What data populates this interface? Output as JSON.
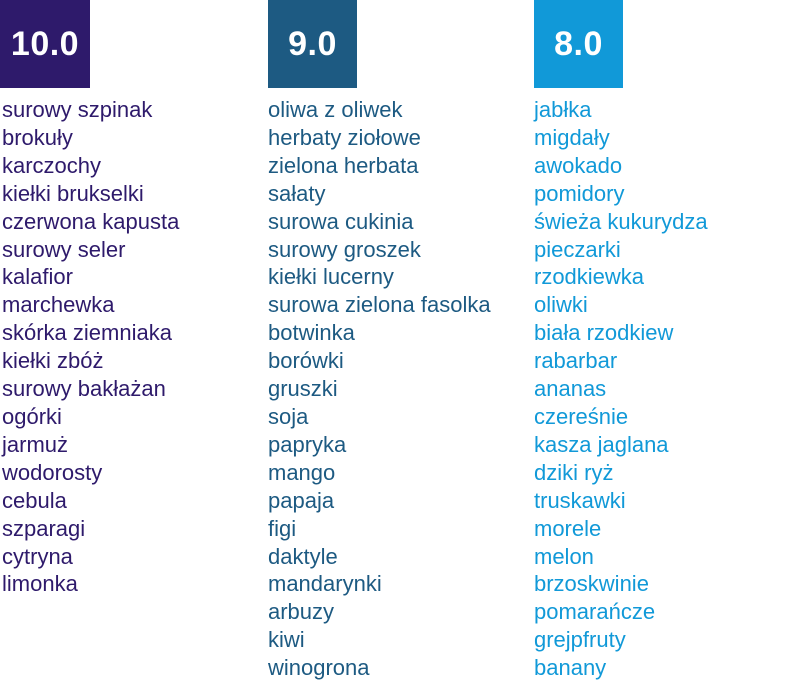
{
  "columns": [
    {
      "score": "10.0",
      "color": "#2e1a6b",
      "items": [
        "surowy szpinak",
        "brokuły",
        "karczochy",
        "kiełki brukselki",
        "czerwona kapusta",
        "surowy seler",
        "kalafior",
        "marchewka",
        "skórka ziemniaka",
        "kiełki zbóż",
        "surowy bakłażan",
        "ogórki",
        "jarmuż",
        "wodorosty",
        "cebula",
        "szparagi",
        "cytryna",
        "limonka"
      ]
    },
    {
      "score": "9.0",
      "color": "#1d5a82",
      "items": [
        "oliwa z oliwek",
        "herbaty ziołowe",
        "zielona herbata",
        "sałaty",
        "surowa cukinia",
        "surowy groszek",
        "kiełki lucerny",
        "surowa zielona fasolka",
        "botwinka",
        "borówki",
        "gruszki",
        "soja",
        "papryka",
        "mango",
        "papaja",
        "figi",
        "daktyle",
        "mandarynki",
        "arbuzy",
        "kiwi",
        "winogrona"
      ]
    },
    {
      "score": "8.0",
      "color": "#1199d8",
      "items": [
        "jabłka",
        "migdały",
        "awokado",
        "pomidory",
        "świeża kukurydza",
        "pieczarki",
        "rzodkiewka",
        "oliwki",
        "biała rzodkiew",
        "rabarbar",
        "ananas",
        "czereśnie",
        "kasza jaglana",
        "dziki ryż",
        "truskawki",
        "morele",
        "melon",
        "brzoskwinie",
        "pomarańcze",
        "grejpfruty",
        "banany"
      ]
    }
  ]
}
